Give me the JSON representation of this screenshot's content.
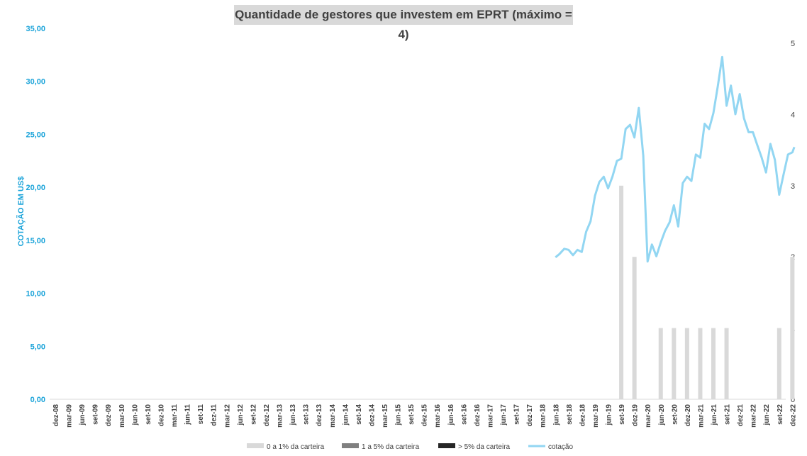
{
  "chart_data": {
    "type": "bar",
    "title": "Quantidade de gestores que investem em EPRT (máximo = 4)",
    "ylabel_left": "COTAÇÃO EM US$",
    "ylim_left": [
      0,
      35
    ],
    "yticks_left": [
      "0,00",
      "5,00",
      "10,00",
      "15,00",
      "20,00",
      "25,00",
      "30,00",
      "35,00"
    ],
    "ylim_right": [
      0,
      5
    ],
    "yticks_right": [
      "0",
      "1",
      "2",
      "3",
      "4",
      "5"
    ],
    "categories": [
      "dez-08",
      "mar-09",
      "jun-09",
      "set-09",
      "dez-09",
      "mar-10",
      "jun-10",
      "set-10",
      "dez-10",
      "mar-11",
      "jun-11",
      "set-11",
      "dez-11",
      "mar-12",
      "jun-12",
      "set-12",
      "dez-12",
      "mar-13",
      "jun-13",
      "set-13",
      "dez-13",
      "mar-14",
      "jun-14",
      "set-14",
      "dez-14",
      "mar-15",
      "jun-15",
      "set-15",
      "dez-15",
      "mar-16",
      "jun-16",
      "set-16",
      "dez-16",
      "mar-17",
      "jun-17",
      "set-17",
      "dez-17",
      "mar-18",
      "jun-18",
      "set-18",
      "dez-18",
      "mar-19",
      "jun-19",
      "set-19",
      "dez-19",
      "mar-20",
      "jun-20",
      "set-20",
      "dez-20",
      "mar-21",
      "jun-21",
      "set-21",
      "dez-21",
      "mar-22",
      "jun-22",
      "set-22",
      "dez-22"
    ],
    "bars": [
      {
        "category": "set-19",
        "value": 3
      },
      {
        "category": "dez-19",
        "value": 2
      },
      {
        "category": "jun-20",
        "value": 1
      },
      {
        "category": "set-20",
        "value": 1
      },
      {
        "category": "dez-20",
        "value": 1
      },
      {
        "category": "mar-21",
        "value": 1
      },
      {
        "category": "jun-21",
        "value": 1
      },
      {
        "category": "set-21",
        "value": 1
      },
      {
        "category": "set-22",
        "value": 1
      },
      {
        "category": "dez-22",
        "value": 2
      }
    ],
    "line": {
      "name": "cotação",
      "color": "#92d6f2",
      "points": [
        [
          38.0,
          13.4
        ],
        [
          38.3,
          13.7
        ],
        [
          38.67,
          14.2
        ],
        [
          39.0,
          14.1
        ],
        [
          39.33,
          13.6
        ],
        [
          39.67,
          14.1
        ],
        [
          40.0,
          13.9
        ],
        [
          40.33,
          15.8
        ],
        [
          40.67,
          16.8
        ],
        [
          41.0,
          19.2
        ],
        [
          41.33,
          20.5
        ],
        [
          41.67,
          21.0
        ],
        [
          42.0,
          19.9
        ],
        [
          42.33,
          21.0
        ],
        [
          42.67,
          22.5
        ],
        [
          43.0,
          22.7
        ],
        [
          43.33,
          25.5
        ],
        [
          43.67,
          25.9
        ],
        [
          44.0,
          24.7
        ],
        [
          44.33,
          27.5
        ],
        [
          44.67,
          23.0
        ],
        [
          45.0,
          13.0
        ],
        [
          45.33,
          14.6
        ],
        [
          45.67,
          13.5
        ],
        [
          46.0,
          14.8
        ],
        [
          46.33,
          15.9
        ],
        [
          46.67,
          16.7
        ],
        [
          47.0,
          18.3
        ],
        [
          47.33,
          16.3
        ],
        [
          47.67,
          20.4
        ],
        [
          48.0,
          21.0
        ],
        [
          48.33,
          20.6
        ],
        [
          48.67,
          23.1
        ],
        [
          49.0,
          22.8
        ],
        [
          49.33,
          26.0
        ],
        [
          49.67,
          25.5
        ],
        [
          50.0,
          27.0
        ],
        [
          50.33,
          29.5
        ],
        [
          50.67,
          32.3
        ],
        [
          51.0,
          27.7
        ],
        [
          51.33,
          29.6
        ],
        [
          51.67,
          26.9
        ],
        [
          52.0,
          28.8
        ],
        [
          52.33,
          26.5
        ],
        [
          52.67,
          25.2
        ],
        [
          53.0,
          25.2
        ],
        [
          53.33,
          24.0
        ],
        [
          53.67,
          22.8
        ],
        [
          54.0,
          21.4
        ],
        [
          54.33,
          24.1
        ],
        [
          54.67,
          22.6
        ],
        [
          55.0,
          19.3
        ],
        [
          55.33,
          21.2
        ],
        [
          55.67,
          23.1
        ],
        [
          56.0,
          23.3
        ],
        [
          56.15,
          23.8
        ]
      ]
    },
    "legend": {
      "placement": "bottom",
      "items": [
        {
          "label": "0 a 1% da carteira",
          "color": "#d9d9d9"
        },
        {
          "label": "1 a 5% da carteira",
          "color": "#808080"
        },
        {
          "label": "> 5% da carteira",
          "color": "#262626"
        },
        {
          "label": "cotação",
          "color": "#92d6f2"
        }
      ]
    },
    "colors": {
      "axis_left": "#1aa3d9",
      "bar": "#d9d9d9",
      "line": "#92d6f2",
      "text": "#404040"
    }
  }
}
